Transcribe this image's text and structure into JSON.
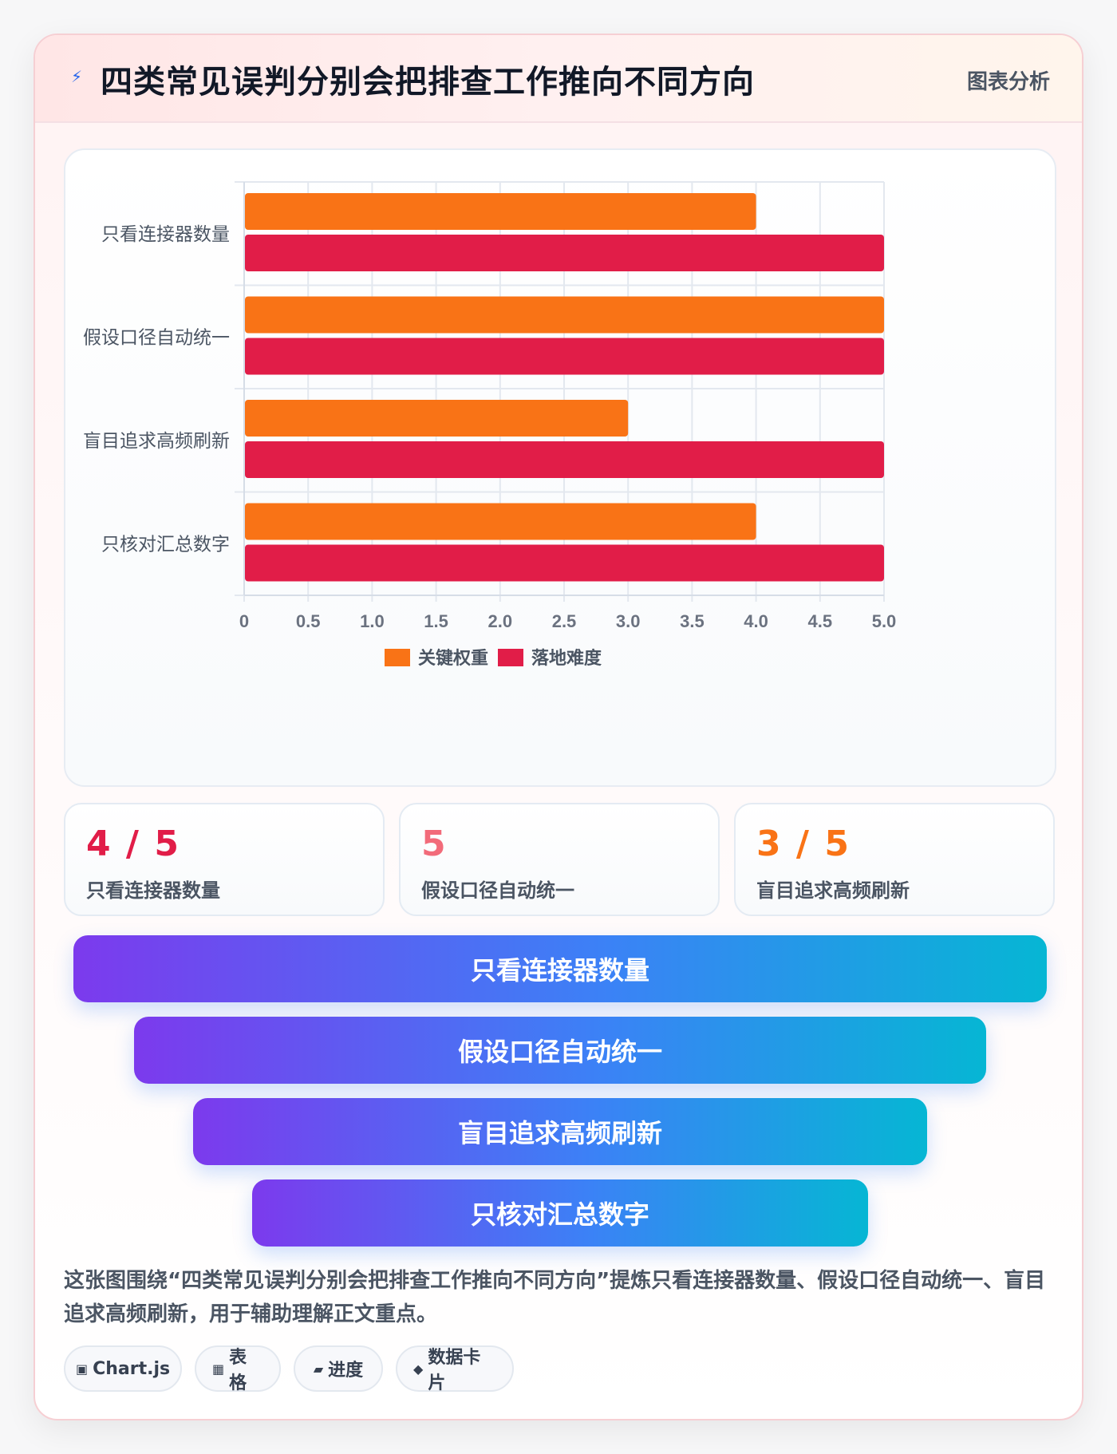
{
  "header": {
    "icon": "lightning-icon",
    "title": "四类常见误判分别会把排查工作推向不同方向",
    "tag": "图表分析"
  },
  "chart_data": {
    "type": "bar",
    "orientation": "horizontal",
    "categories": [
      "只看连接器数量",
      "假设口径自动统一",
      "盲目追求高频刷新",
      "只核对汇总数字"
    ],
    "series": [
      {
        "name": "关键权重",
        "color": "#f97316",
        "values": [
          4,
          5,
          3,
          4
        ]
      },
      {
        "name": "落地难度",
        "color": "#e11d48",
        "values": [
          5,
          5,
          5,
          5
        ]
      }
    ],
    "xlim": [
      0,
      5
    ],
    "ticks": [
      "0",
      "0.5",
      "1.0",
      "1.5",
      "2.0",
      "2.5",
      "3.0",
      "3.5",
      "4.0",
      "4.5",
      "5.0"
    ],
    "grid": true,
    "legend": "bottom"
  },
  "stats": [
    {
      "value": "4 / 5",
      "label": "只看连接器数量",
      "color": "#e11d48"
    },
    {
      "value": "5",
      "label": "假设口径自动统一",
      "color": "#f26b7a"
    },
    {
      "value": "3 / 5",
      "label": "盲目追求高频刷新",
      "color": "#f97316"
    }
  ],
  "funnel": [
    {
      "label": "只看连接器数量"
    },
    {
      "label": "假设口径自动统一"
    },
    {
      "label": "盲目追求高频刷新"
    },
    {
      "label": "只核对汇总数字"
    }
  ],
  "description": "这张图围绕“四类常见误判分别会把排查工作推向不同方向”提炼只看连接器数量、假设口径自动统一、盲目追求高频刷新，用于辅助理解正文重点。",
  "chips": [
    {
      "icon": "▣",
      "label": "Chart.js"
    },
    {
      "icon": "▦",
      "label": "表格"
    },
    {
      "icon": "▰",
      "label": "进度"
    },
    {
      "icon": "◆",
      "label": "数据卡片"
    }
  ]
}
